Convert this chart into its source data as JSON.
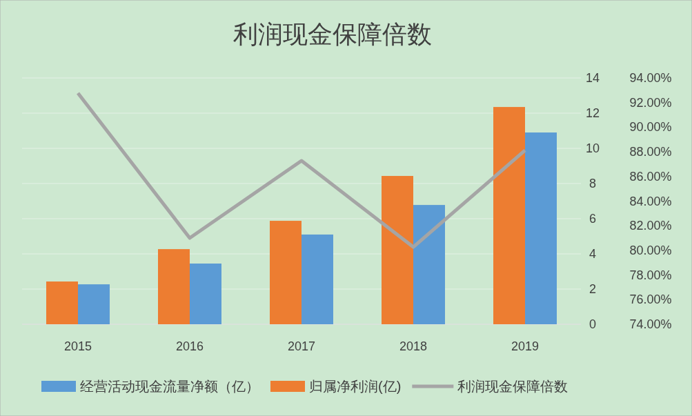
{
  "chart_data": {
    "type": "bar",
    "title": "利润现金保障倍数",
    "categories": [
      "2015",
      "2016",
      "2017",
      "2018",
      "2019"
    ],
    "series": [
      {
        "name": "经营活动现金流量净额（亿）",
        "color": "#5b9bd5",
        "values": [
          2.27,
          3.45,
          5.1,
          6.78,
          10.9
        ]
      },
      {
        "name": "归属净利润(亿)",
        "color": "#ed7d31",
        "values": [
          2.43,
          4.27,
          5.88,
          8.43,
          12.35
        ]
      },
      {
        "name": "利润现金保障倍数",
        "type": "line",
        "axis": "y2",
        "color": "#a5a5a5",
        "values": [
          92.77,
          81.0,
          87.28,
          80.27,
          88.12
        ]
      }
    ],
    "ylim": [
      0,
      14
    ],
    "yticks": [
      0,
      2,
      4,
      6,
      8,
      10,
      12,
      14
    ],
    "y2lim": [
      74,
      94
    ],
    "y2ticks": [
      {
        "value": 74,
        "label": "74.00%"
      },
      {
        "value": 76,
        "label": "76.00%"
      },
      {
        "value": 78,
        "label": "78.00%"
      },
      {
        "value": 80,
        "label": "80.00%"
      },
      {
        "value": 82,
        "label": "82.00%"
      },
      {
        "value": 84,
        "label": "84.00%"
      },
      {
        "value": 86,
        "label": "86.00%"
      },
      {
        "value": 88,
        "label": "88.00%"
      },
      {
        "value": 90,
        "label": "90.00%"
      },
      {
        "value": 92,
        "label": "92.00%"
      },
      {
        "value": 94,
        "label": "94.00%"
      }
    ],
    "grid": "y",
    "legend": "bottom"
  }
}
